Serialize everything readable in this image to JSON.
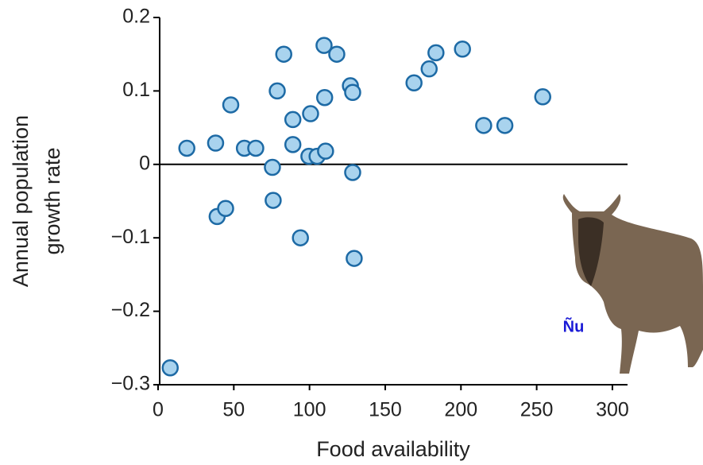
{
  "chart_data": {
    "type": "scatter",
    "xlabel": "Food availability",
    "ylabel": [
      "Annual population",
      "growth rate"
    ],
    "annotation": "Ñu",
    "x": [
      8,
      19,
      38,
      39,
      44.6,
      48,
      57,
      64.5,
      75.5,
      76,
      78.7,
      83,
      89,
      89,
      94,
      99.6,
      100.7,
      105,
      109.6,
      110,
      110.6,
      118,
      127,
      128.5,
      128.5,
      129.5,
      169,
      179,
      183.5,
      201,
      215,
      229,
      254
    ],
    "values": [
      -0.277,
      0.022,
      0.029,
      -0.071,
      -0.06,
      0.081,
      0.022,
      0.022,
      -0.004,
      -0.049,
      0.1,
      0.15,
      0.027,
      0.061,
      -0.1,
      0.011,
      0.069,
      0.011,
      0.162,
      0.091,
      0.018,
      0.15,
      0.107,
      0.098,
      -0.011,
      -0.128,
      0.111,
      0.13,
      0.152,
      0.157,
      0.053,
      0.053,
      0.092
    ],
    "color": "#a9d3ee",
    "edge_color": "#1d6aa5",
    "xlim": [
      0,
      310
    ],
    "ylim": [
      -0.3,
      0.2
    ],
    "xticks": [
      0,
      50,
      100,
      150,
      200,
      250,
      300
    ],
    "yticks": [
      {
        "value": -0.3,
        "label": "−0.3"
      },
      {
        "value": -0.2,
        "label": "−0.2"
      },
      {
        "value": -0.1,
        "label": "−0.1"
      },
      0,
      0.1,
      0.2
    ],
    "zero_line": true,
    "grid": false
  }
}
